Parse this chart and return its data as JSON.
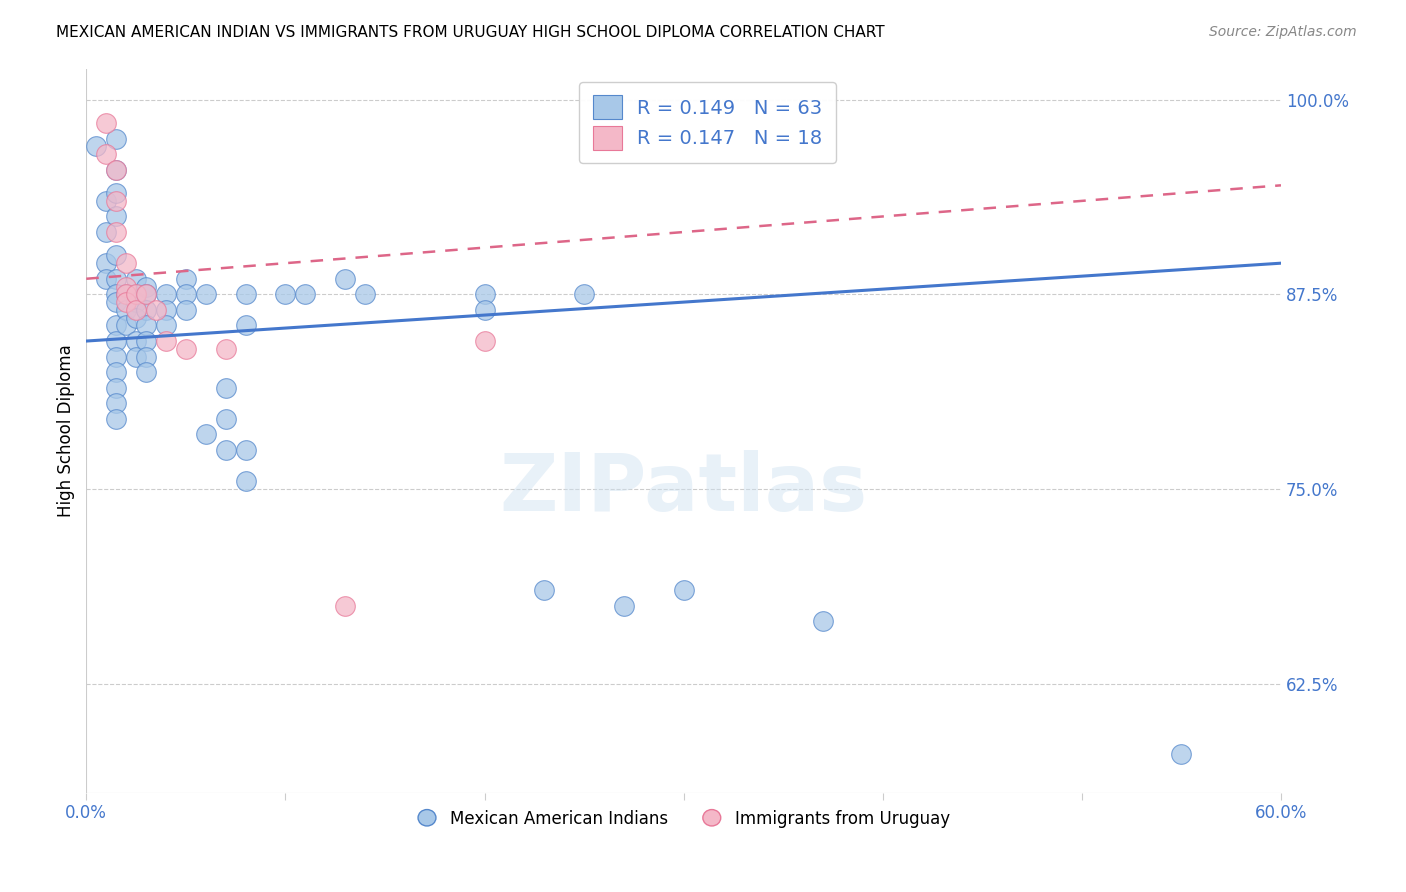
{
  "title": "MEXICAN AMERICAN INDIAN VS IMMIGRANTS FROM URUGUAY HIGH SCHOOL DIPLOMA CORRELATION CHART",
  "source": "Source: ZipAtlas.com",
  "ylabel": "High School Diploma",
  "yticks": [
    1.0,
    0.875,
    0.75,
    0.625
  ],
  "ytick_labels": [
    "100.0%",
    "87.5%",
    "75.0%",
    "62.5%"
  ],
  "blue_R": 0.149,
  "blue_N": 63,
  "pink_R": 0.147,
  "pink_N": 18,
  "legend_label_blue": "Mexican American Indians",
  "legend_label_pink": "Immigrants from Uruguay",
  "blue_color": "#a8c8e8",
  "pink_color": "#f4b8c8",
  "blue_edge_color": "#5588cc",
  "pink_edge_color": "#e87898",
  "blue_line_color": "#4477cc",
  "pink_line_color": "#dd6688",
  "blue_scatter": [
    [
      0.5,
      0.97
    ],
    [
      1.0,
      0.935
    ],
    [
      1.0,
      0.915
    ],
    [
      1.0,
      0.895
    ],
    [
      1.0,
      0.885
    ],
    [
      1.5,
      0.975
    ],
    [
      1.5,
      0.955
    ],
    [
      1.5,
      0.94
    ],
    [
      1.5,
      0.925
    ],
    [
      1.5,
      0.9
    ],
    [
      1.5,
      0.885
    ],
    [
      1.5,
      0.875
    ],
    [
      1.5,
      0.87
    ],
    [
      1.5,
      0.855
    ],
    [
      1.5,
      0.845
    ],
    [
      1.5,
      0.835
    ],
    [
      1.5,
      0.825
    ],
    [
      1.5,
      0.815
    ],
    [
      1.5,
      0.805
    ],
    [
      1.5,
      0.795
    ],
    [
      2.0,
      0.875
    ],
    [
      2.0,
      0.865
    ],
    [
      2.0,
      0.855
    ],
    [
      2.5,
      0.885
    ],
    [
      2.5,
      0.875
    ],
    [
      2.5,
      0.87
    ],
    [
      2.5,
      0.86
    ],
    [
      2.5,
      0.845
    ],
    [
      2.5,
      0.835
    ],
    [
      3.0,
      0.88
    ],
    [
      3.0,
      0.875
    ],
    [
      3.0,
      0.865
    ],
    [
      3.0,
      0.855
    ],
    [
      3.0,
      0.845
    ],
    [
      3.0,
      0.835
    ],
    [
      3.0,
      0.825
    ],
    [
      4.0,
      0.875
    ],
    [
      4.0,
      0.865
    ],
    [
      4.0,
      0.855
    ],
    [
      5.0,
      0.885
    ],
    [
      5.0,
      0.875
    ],
    [
      5.0,
      0.865
    ],
    [
      6.0,
      0.875
    ],
    [
      6.0,
      0.785
    ],
    [
      7.0,
      0.815
    ],
    [
      7.0,
      0.795
    ],
    [
      7.0,
      0.775
    ],
    [
      8.0,
      0.875
    ],
    [
      8.0,
      0.855
    ],
    [
      8.0,
      0.775
    ],
    [
      8.0,
      0.755
    ],
    [
      10.0,
      0.875
    ],
    [
      11.0,
      0.875
    ],
    [
      13.0,
      0.885
    ],
    [
      14.0,
      0.875
    ],
    [
      20.0,
      0.875
    ],
    [
      20.0,
      0.865
    ],
    [
      23.0,
      0.685
    ],
    [
      25.0,
      0.875
    ],
    [
      27.0,
      0.675
    ],
    [
      30.0,
      0.685
    ],
    [
      37.0,
      0.665
    ],
    [
      55.0,
      0.58
    ]
  ],
  "pink_scatter": [
    [
      1.0,
      0.985
    ],
    [
      1.0,
      0.965
    ],
    [
      1.5,
      0.955
    ],
    [
      1.5,
      0.935
    ],
    [
      1.5,
      0.915
    ],
    [
      2.0,
      0.895
    ],
    [
      2.0,
      0.88
    ],
    [
      2.0,
      0.875
    ],
    [
      2.0,
      0.87
    ],
    [
      2.5,
      0.875
    ],
    [
      2.5,
      0.865
    ],
    [
      3.0,
      0.875
    ],
    [
      3.5,
      0.865
    ],
    [
      4.0,
      0.845
    ],
    [
      5.0,
      0.84
    ],
    [
      7.0,
      0.84
    ],
    [
      13.0,
      0.675
    ],
    [
      20.0,
      0.845
    ]
  ],
  "blue_line_y_start": 0.845,
  "blue_line_y_end": 0.895,
  "pink_line_y_start": 0.885,
  "pink_line_y_end": 0.945,
  "xmin": 0.0,
  "xmax": 60.0,
  "ymin": 0.555,
  "ymax": 1.02,
  "figsize": [
    14.06,
    8.92
  ],
  "dpi": 100
}
